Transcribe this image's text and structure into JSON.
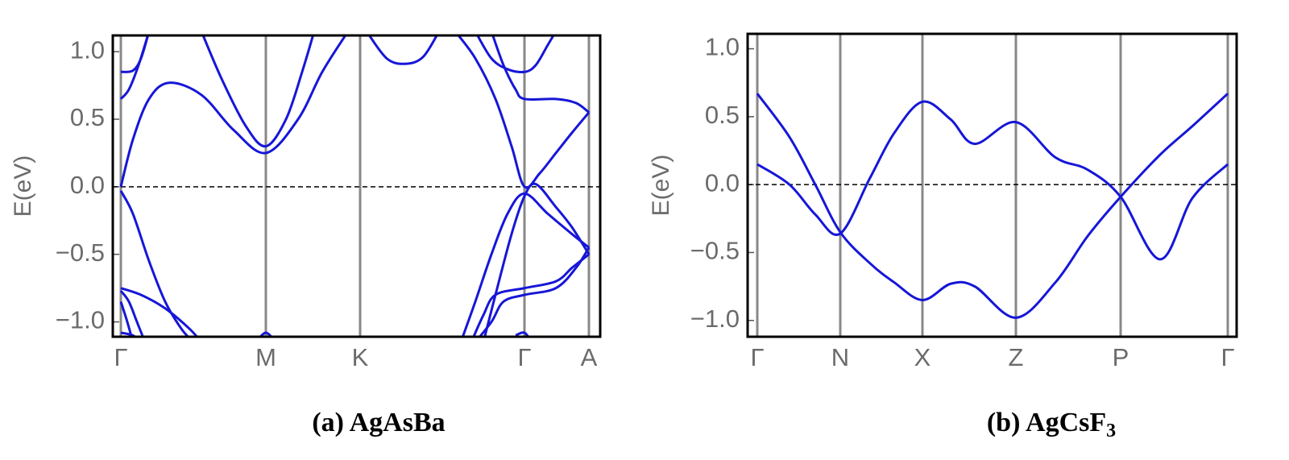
{
  "chart_data": [
    {
      "type": "line",
      "ylabel": "E(eV)",
      "caption": "(a) AgAsBa",
      "color": "#1616d8",
      "xlim": [
        -0.1,
        5.95
      ],
      "ylim": [
        -1.11,
        1.12
      ],
      "xticks": [
        {
          "value": 0,
          "label": "Γ"
        },
        {
          "value": 1.8,
          "label": "M"
        },
        {
          "value": 2.97,
          "label": "K"
        },
        {
          "value": 5.01,
          "label": "Γ"
        },
        {
          "value": 5.81,
          "label": "A"
        }
      ],
      "yticks": [
        {
          "value": 1.0,
          "label": "1.0"
        },
        {
          "value": 0.5,
          "label": "0.5"
        },
        {
          "value": 0.0,
          "label": "0.0"
        },
        {
          "value": -0.5,
          "label": "−0.5"
        },
        {
          "value": -1.0,
          "label": "−1.0"
        }
      ],
      "reference_line": 0,
      "series": [
        {
          "x": [
            0,
            0.15,
            0.25,
            0.35
          ],
          "values": [
            0.85,
            0.86,
            0.95,
            1.15
          ]
        },
        {
          "x": [
            0,
            0.1,
            0.22,
            0.35
          ],
          "values": [
            0.65,
            0.72,
            0.9,
            1.15
          ]
        },
        {
          "x": [
            0,
            0.15,
            0.35,
            0.6,
            1.0,
            1.4,
            1.8,
            2.2,
            2.5,
            2.82
          ],
          "values": [
            0,
            0.35,
            0.65,
            0.77,
            0.68,
            0.42,
            0.25,
            0.5,
            0.85,
            1.15
          ]
        },
        {
          "x": [
            1.0,
            1.25,
            1.55,
            1.8,
            2.05,
            2.25,
            2.4
          ],
          "values": [
            1.15,
            0.8,
            0.45,
            0.3,
            0.5,
            0.85,
            1.15
          ]
        },
        {
          "x": [
            3.05,
            3.3,
            3.53,
            3.75,
            3.95
          ],
          "values": [
            1.15,
            0.95,
            0.91,
            0.96,
            1.15
          ]
        },
        {
          "x": [
            4.15,
            4.4,
            4.65,
            4.85,
            5.01,
            5.2,
            5.4,
            5.6,
            5.81
          ],
          "values": [
            1.15,
            0.95,
            0.65,
            0.3,
            0.0,
            0.1,
            0.25,
            0.4,
            0.55
          ]
        },
        {
          "x": [
            4.4,
            4.6,
            4.8,
            5.01,
            5.15,
            5.3,
            5.4
          ],
          "values": [
            1.15,
            0.95,
            0.87,
            0.85,
            0.9,
            1.05,
            1.15
          ]
        },
        {
          "x": [
            4.6,
            4.75,
            4.9,
            5.01,
            5.4,
            5.65,
            5.81
          ],
          "values": [
            1.15,
            0.9,
            0.72,
            0.65,
            0.65,
            0.62,
            0.55
          ]
        },
        {
          "x": [
            0,
            0.15,
            0.35,
            0.55,
            0.75,
            0.9
          ],
          "values": [
            -0.03,
            -0.2,
            -0.55,
            -0.85,
            -1.05,
            -1.15
          ]
        },
        {
          "x": [
            0,
            0.25,
            0.55,
            0.85,
            1.0
          ],
          "values": [
            -0.75,
            -0.8,
            -0.9,
            -1.05,
            -1.15
          ]
        },
        {
          "x": [
            0,
            0.1,
            0.2,
            0.3
          ],
          "values": [
            -0.77,
            -0.85,
            -1.0,
            -1.15
          ]
        },
        {
          "x": [
            0,
            0.08,
            0.15
          ],
          "values": [
            -0.85,
            -1.0,
            -1.15
          ]
        },
        {
          "x": [
            0,
            0.15,
            0.25
          ],
          "values": [
            -1.08,
            -1.1,
            -1.15
          ]
        },
        {
          "x": [
            1.68,
            1.8,
            1.92
          ],
          "values": [
            -1.15,
            -1.08,
            -1.15
          ]
        },
        {
          "x": [
            4.22,
            4.4,
            4.6,
            4.8,
            5.01,
            5.3,
            5.6,
            5.81
          ],
          "values": [
            -1.15,
            -0.85,
            -0.5,
            -0.2,
            -0.05,
            -0.2,
            -0.35,
            -0.45
          ]
        },
        {
          "x": [
            4.35,
            4.5,
            4.65,
            5.01,
            5.4,
            5.6,
            5.81
          ],
          "values": [
            -1.15,
            -0.95,
            -0.8,
            -0.75,
            -0.7,
            -0.6,
            -0.5
          ]
        },
        {
          "x": [
            4.4,
            4.6,
            4.75,
            5.01,
            5.4,
            5.65,
            5.81
          ],
          "values": [
            -1.15,
            -1.0,
            -0.85,
            -0.8,
            -0.75,
            -0.6,
            -0.45
          ]
        },
        {
          "x": [
            4.5,
            4.65,
            4.85,
            5.01,
            5.15,
            5.4,
            5.6,
            5.81
          ],
          "values": [
            -1.15,
            -0.8,
            -0.35,
            -0.07,
            0.02,
            -0.15,
            -0.3,
            -0.5
          ]
        },
        {
          "x": [
            4.9,
            5.01,
            5.1
          ],
          "values": [
            -1.1,
            -1.08,
            -1.15
          ]
        }
      ]
    },
    {
      "type": "line",
      "ylabel": "E(eV)",
      "caption": "(b) AgCsF",
      "caption_subscript": "3",
      "color": "#1616d8",
      "xlim": [
        -0.12,
        5.95
      ],
      "ylim": [
        -1.12,
        1.11
      ],
      "xticks": [
        {
          "value": 0,
          "label": "Γ"
        },
        {
          "value": 1.03,
          "label": "N"
        },
        {
          "value": 2.05,
          "label": "X"
        },
        {
          "value": 3.21,
          "label": "Z"
        },
        {
          "value": 4.51,
          "label": "P"
        },
        {
          "value": 5.84,
          "label": "Γ"
        }
      ],
      "yticks": [
        {
          "value": 1.0,
          "label": "1.0"
        },
        {
          "value": 0.5,
          "label": "0.5"
        },
        {
          "value": 0.0,
          "label": "0.0"
        },
        {
          "value": -0.5,
          "label": "−0.5"
        },
        {
          "value": -1.0,
          "label": "−1.0"
        }
      ],
      "reference_line": 0,
      "series": [
        {
          "x": [
            0,
            0.4,
            0.72,
            1.03,
            1.4,
            1.7,
            2.05,
            2.4,
            2.7,
            3.21,
            3.7,
            4.1,
            4.51,
            5.0,
            5.4,
            5.84
          ],
          "values": [
            0.67,
            0.35,
            0.0,
            -0.35,
            -0.58,
            -0.72,
            -0.85,
            -0.73,
            -0.75,
            -0.98,
            -0.72,
            -0.38,
            -0.09,
            0.22,
            0.43,
            0.67
          ]
        },
        {
          "x": [
            0,
            0.4,
            0.72,
            1.03,
            1.4,
            1.7,
            2.05,
            2.4,
            2.7,
            3.21,
            3.7,
            4.1,
            4.51,
            5.0,
            5.4,
            5.84
          ],
          "values": [
            0.15,
            0.0,
            -0.22,
            -0.36,
            0.05,
            0.38,
            0.61,
            0.48,
            0.3,
            0.46,
            0.2,
            0.11,
            -0.09,
            -0.55,
            -0.1,
            0.15
          ]
        }
      ]
    }
  ]
}
